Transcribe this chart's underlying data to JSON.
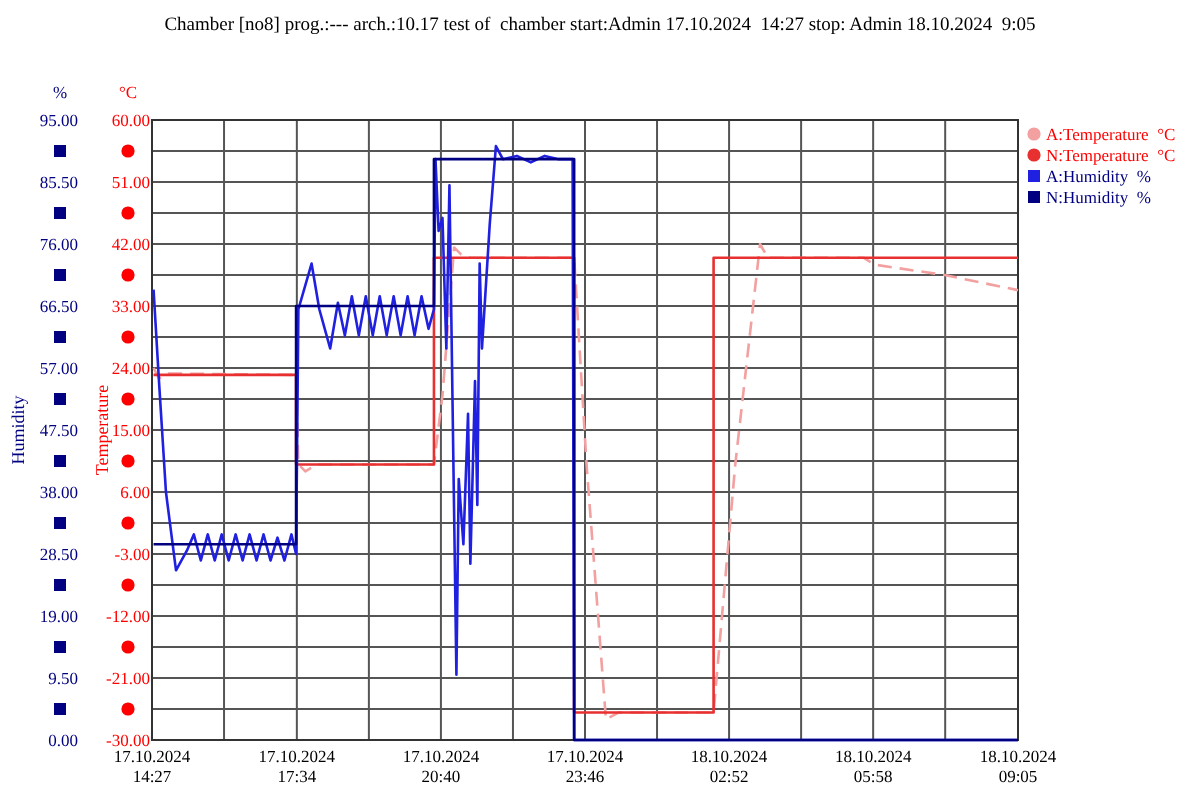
{
  "chart_data": {
    "type": "line",
    "title": "Chamber [no8] prog.:--- arch.:10.17 test of  chamber start:Admin 17.10.2024  14:27 stop: Admin 18.10.2024  9:05",
    "ylabel": "Temperature",
    "y2label": "Humidity",
    "annotations": [
      "°C",
      "%"
    ],
    "xlim": [
      "2024-10-17T14:27",
      "2024-10-18T09:05"
    ],
    "xticks": [
      {
        "value": "2024-10-17T14:27",
        "label": "17.10.2024\n14:27"
      },
      {
        "value": "2024-10-17T16:00",
        "label": null
      },
      {
        "value": "2024-10-17T17:34",
        "label": "17.10.2024\n17:34"
      },
      {
        "value": "2024-10-17T19:07",
        "label": null
      },
      {
        "value": "2024-10-17T20:40",
        "label": "17.10.2024\n20:40"
      },
      {
        "value": "2024-10-17T22:13",
        "label": null
      },
      {
        "value": "2024-10-17T23:46",
        "label": "17.10.2024\n23:46"
      },
      {
        "value": "2024-10-18T01:19",
        "label": null
      },
      {
        "value": "2024-10-18T02:52",
        "label": "18.10.2024\n02:52"
      },
      {
        "value": "2024-10-18T04:25",
        "label": null
      },
      {
        "value": "2024-10-18T05:58",
        "label": "18.10.2024\n05:58"
      },
      {
        "value": "2024-10-18T07:31",
        "label": null
      },
      {
        "value": "2024-10-18T09:05",
        "label": "18.10.2024\n09:05"
      }
    ],
    "ylim": [
      -30,
      60
    ],
    "yticks": [
      {
        "value": -30,
        "label": "-30.00"
      },
      {
        "value": -25.5,
        "label": null
      },
      {
        "value": -21,
        "label": "-21.00"
      },
      {
        "value": -16.5,
        "label": null
      },
      {
        "value": -12,
        "label": "-12.00"
      },
      {
        "value": -7.5,
        "label": null
      },
      {
        "value": -3,
        "label": "-3.00"
      },
      {
        "value": 1.5,
        "label": null
      },
      {
        "value": 6,
        "label": "6.00"
      },
      {
        "value": 10.5,
        "label": null
      },
      {
        "value": 15,
        "label": "15.00"
      },
      {
        "value": 19.5,
        "label": null
      },
      {
        "value": 24,
        "label": "24.00"
      },
      {
        "value": 28.5,
        "label": null
      },
      {
        "value": 33,
        "label": "33.00"
      },
      {
        "value": 37.5,
        "label": null
      },
      {
        "value": 42,
        "label": "42.00"
      },
      {
        "value": 46.5,
        "label": null
      },
      {
        "value": 51,
        "label": "51.00"
      },
      {
        "value": 55.5,
        "label": null
      },
      {
        "value": 60,
        "label": "60.00"
      }
    ],
    "y2lim": [
      0,
      95
    ],
    "y2ticks": [
      {
        "value": 0,
        "label": "0.00"
      },
      {
        "value": 4.75,
        "label": null
      },
      {
        "value": 9.5,
        "label": "9.50"
      },
      {
        "value": 14.25,
        "label": null
      },
      {
        "value": 19,
        "label": "19.00"
      },
      {
        "value": 23.75,
        "label": null
      },
      {
        "value": 28.5,
        "label": "28.50"
      },
      {
        "value": 33.25,
        "label": null
      },
      {
        "value": 38,
        "label": "38.00"
      },
      {
        "value": 42.75,
        "label": null
      },
      {
        "value": 47.5,
        "label": "47.50"
      },
      {
        "value": 52.25,
        "label": null
      },
      {
        "value": 57,
        "label": "57.00"
      },
      {
        "value": 61.75,
        "label": null
      },
      {
        "value": 66.5,
        "label": "66.50"
      },
      {
        "value": 71.25,
        "label": null
      },
      {
        "value": 76,
        "label": "76.00"
      },
      {
        "value": 80.75,
        "label": null
      },
      {
        "value": 85.5,
        "label": "85.50"
      },
      {
        "value": 90.25,
        "label": null
      },
      {
        "value": 95,
        "label": "95.00"
      }
    ],
    "grid": true,
    "legend": "right",
    "line_style": "solid",
    "series": [
      {
        "name": "A:Temperature  °C",
        "color": "#f2a0a0",
        "line_style": "dashed",
        "x": [
          "2024-10-17T14:29",
          "2024-10-17T14:36",
          "2024-10-17T14:48",
          "2024-10-17T17:33",
          "2024-10-17T17:36",
          "2024-10-17T17:45",
          "2024-10-17T18:00",
          "2024-10-17T20:31",
          "2024-10-17T20:42",
          "2024-10-17T20:57",
          "2024-10-17T21:06",
          "2024-10-17T21:18",
          "2024-10-17T23:32",
          "2024-10-17T23:48",
          "2024-10-18T00:13",
          "2024-10-18T00:30",
          "2024-10-18T02:32",
          "2024-10-18T03:00",
          "2024-10-18T03:32",
          "2024-10-18T03:42",
          "2024-10-18T05:46",
          "2024-10-18T06:00",
          "2024-10-18T07:30",
          "2024-10-18T09:05"
        ],
        "values": [
          24,
          22.5,
          23.2,
          23,
          10,
          9,
          10,
          10,
          20,
          41.5,
          40.5,
          40,
          40,
          10,
          -27,
          -26,
          -26,
          10,
          42,
          40,
          40,
          39,
          37.5,
          35.3
        ]
      },
      {
        "name": "N:Temperature  °C",
        "color": "#e83030",
        "x": [
          "2024-10-17T14:29",
          "2024-10-17T17:33",
          "2024-10-17T17:33",
          "2024-10-17T20:31",
          "2024-10-17T20:31",
          "2024-10-17T23:32",
          "2024-10-17T23:32",
          "2024-10-18T02:32",
          "2024-10-18T02:32",
          "2024-10-18T09:05"
        ],
        "values": [
          23,
          23,
          10,
          10,
          40,
          40,
          -26,
          -26,
          40,
          40
        ]
      },
      {
        "name": "A:Humidity  %",
        "color": "#2020e0",
        "axis": "y2",
        "x": [
          "2024-10-17T14:29",
          "2024-10-17T14:36",
          "2024-10-17T14:45",
          "2024-10-17T14:58",
          "2024-10-17T15:12",
          "2024-10-17T15:21",
          "2024-10-17T15:30",
          "2024-10-17T15:39",
          "2024-10-17T15:48",
          "2024-10-17T15:57",
          "2024-10-17T16:06",
          "2024-10-17T16:15",
          "2024-10-17T16:24",
          "2024-10-17T16:33",
          "2024-10-17T16:42",
          "2024-10-17T16:51",
          "2024-10-17T17:00",
          "2024-10-17T17:09",
          "2024-10-17T17:18",
          "2024-10-17T17:27",
          "2024-10-17T17:33",
          "2024-10-17T17:36",
          "2024-10-17T17:53",
          "2024-10-17T18:03",
          "2024-10-17T18:17",
          "2024-10-17T18:27",
          "2024-10-17T18:36",
          "2024-10-17T18:45",
          "2024-10-17T18:54",
          "2024-10-17T19:03",
          "2024-10-17T19:12",
          "2024-10-17T19:21",
          "2024-10-17T19:30",
          "2024-10-17T19:39",
          "2024-10-17T19:48",
          "2024-10-17T19:57",
          "2024-10-17T20:06",
          "2024-10-17T20:15",
          "2024-10-17T20:24",
          "2024-10-17T20:31",
          "2024-10-17T20:33",
          "2024-10-17T20:37",
          "2024-10-17T20:42",
          "2024-10-17T20:47",
          "2024-10-17T20:51",
          "2024-10-17T20:57",
          "2024-10-17T21:00",
          "2024-10-17T21:03",
          "2024-10-17T21:09",
          "2024-10-17T21:15",
          "2024-10-17T21:18",
          "2024-10-17T21:24",
          "2024-10-17T21:27",
          "2024-10-17T21:30",
          "2024-10-17T21:33",
          "2024-10-17T21:43",
          "2024-10-17T21:51",
          "2024-10-17T22:00",
          "2024-10-17T22:18",
          "2024-10-17T22:36",
          "2024-10-17T22:54",
          "2024-10-17T23:12",
          "2024-10-17T23:30",
          "2024-10-17T23:32",
          "2024-10-18T09:05"
        ],
        "values": [
          69,
          55,
          38,
          26,
          29,
          31.5,
          27.5,
          31.5,
          27.5,
          31.5,
          27.5,
          31.5,
          27.5,
          31.5,
          27.5,
          31.5,
          27.5,
          31,
          27.5,
          31.5,
          28.5,
          66,
          73,
          66,
          60,
          67,
          62,
          68,
          62,
          68,
          62,
          68,
          62,
          68,
          62,
          68,
          62,
          68,
          63,
          66,
          89,
          78,
          80,
          60,
          85,
          35,
          10,
          40,
          30,
          50,
          27,
          55,
          36,
          73,
          60,
          79,
          91,
          89,
          89.5,
          88.5,
          89.5,
          89,
          89,
          0,
          0
        ]
      },
      {
        "name": "N:Humidity  %",
        "color": "#000080",
        "axis": "y2",
        "x": [
          "2024-10-17T14:29",
          "2024-10-17T17:33",
          "2024-10-17T17:33",
          "2024-10-17T20:31",
          "2024-10-17T20:31",
          "2024-10-17T23:32",
          "2024-10-17T23:32",
          "2024-10-18T09:05"
        ],
        "values": [
          30,
          30,
          66.5,
          66.5,
          89,
          89,
          0,
          0
        ]
      }
    ]
  }
}
